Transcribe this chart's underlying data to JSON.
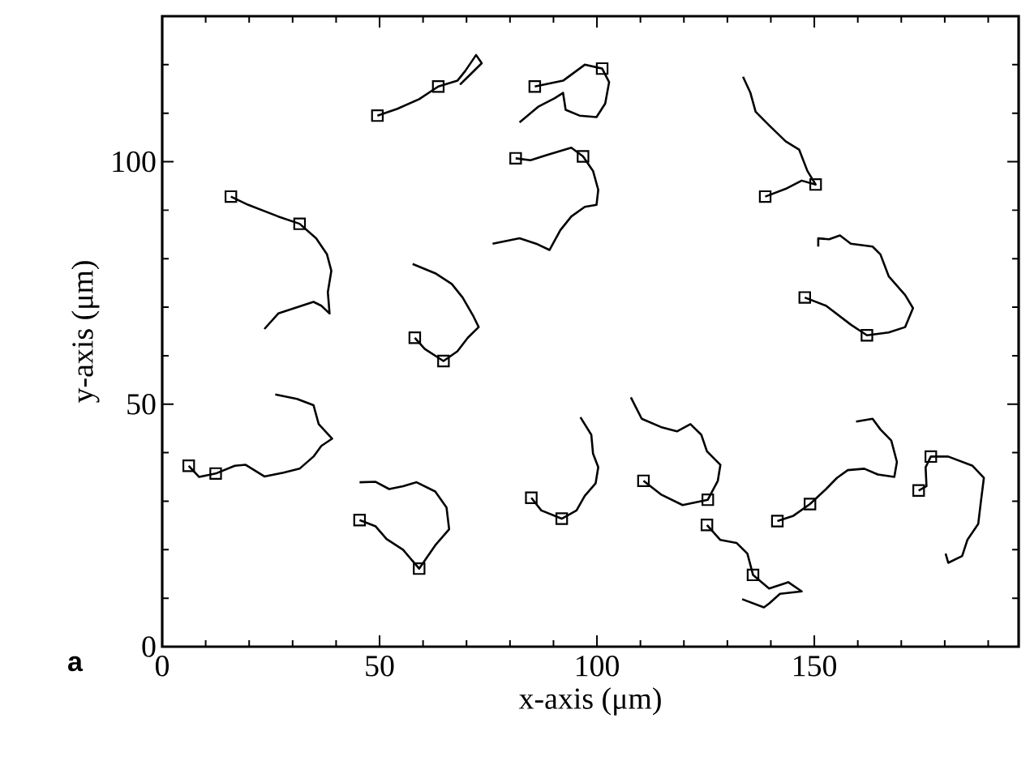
{
  "chart_data": {
    "type": "line",
    "xlabel": "x-axis (μm)",
    "ylabel": "y-axis (μm)",
    "annotations": [
      "a"
    ],
    "xlim": [
      0,
      197
    ],
    "ylim": [
      0,
      130
    ],
    "grid": false,
    "marker": "none",
    "xticks": [
      0,
      {
        "value": 10,
        "label": null
      },
      {
        "value": 20,
        "label": null
      },
      {
        "value": 30,
        "label": null
      },
      {
        "value": 40,
        "label": null
      },
      50,
      {
        "value": 60,
        "label": null
      },
      {
        "value": 70,
        "label": null
      },
      {
        "value": 80,
        "label": null
      },
      {
        "value": 90,
        "label": null
      },
      100,
      {
        "value": 110,
        "label": null
      },
      {
        "value": 120,
        "label": null
      },
      {
        "value": 130,
        "label": null
      },
      {
        "value": 140,
        "label": null
      },
      150,
      {
        "value": 160,
        "label": null
      },
      {
        "value": 170,
        "label": null
      },
      {
        "value": 180,
        "label": null
      },
      {
        "value": 190,
        "label": null
      }
    ],
    "yticks": [
      0,
      {
        "value": 10,
        "label": null
      },
      {
        "value": 20,
        "label": null
      },
      {
        "value": 30,
        "label": null
      },
      {
        "value": 40,
        "label": null
      },
      50,
      {
        "value": 60,
        "label": null
      },
      {
        "value": 70,
        "label": null
      },
      {
        "value": 80,
        "label": null
      },
      {
        "value": 90,
        "label": null
      },
      100,
      {
        "value": 110,
        "label": null
      },
      {
        "value": 120,
        "label": null
      }
    ],
    "series": [
      {
        "color": "#000000",
        "x": [
          49.5,
          54.1,
          59.1,
          63.5,
          67.9,
          69.7,
          72.2,
          73.5,
          71.0,
          68.5
        ],
        "values": [
          109.5,
          110.9,
          112.9,
          115.5,
          116.7,
          118.7,
          122.0,
          120.3,
          118.1,
          115.9
        ]
      },
      {
        "color": "#000000",
        "x": [
          85.7,
          92.2,
          97.2,
          101.2,
          102.8,
          101.9,
          99.9,
          96.0,
          92.8,
          92.2,
          90.3,
          86.6,
          82.2
        ],
        "values": [
          115.5,
          116.7,
          120.0,
          119.2,
          116.4,
          112.0,
          109.2,
          109.5,
          110.7,
          114.2,
          113.1,
          111.4,
          108.1
        ]
      },
      {
        "color": "#000000",
        "x": [
          81.3,
          84.7,
          88.5,
          94.1,
          96.8,
          99.1,
          100.3,
          99.9,
          97.2,
          94.1,
          91.6,
          89.1,
          86.0,
          82.2,
          76.0
        ],
        "values": [
          100.7,
          100.3,
          101.4,
          102.9,
          101.1,
          98.1,
          94.2,
          91.1,
          90.7,
          88.7,
          85.9,
          81.8,
          83.1,
          84.2,
          83.1
        ]
      },
      {
        "color": "#000000",
        "x": [
          138.7,
          143.4,
          147.1,
          150.3,
          148.4,
          146.5,
          143.4,
          139.6,
          136.5,
          135.3,
          133.6
        ],
        "values": [
          92.8,
          94.4,
          96.1,
          95.3,
          98.1,
          102.5,
          104.2,
          107.5,
          110.3,
          114.2,
          117.5
        ]
      },
      {
        "color": "#000000",
        "x": [
          147.8,
          152.7,
          158.4,
          162.1,
          167.1,
          170.9,
          172.7,
          170.9,
          167.1,
          165.2,
          163.4,
          158.4,
          155.9,
          153.4,
          150.9,
          150.9
        ],
        "values": [
          72.0,
          70.3,
          66.4,
          64.2,
          64.8,
          65.9,
          69.8,
          72.5,
          76.4,
          80.9,
          82.5,
          83.1,
          84.8,
          84.0,
          84.2,
          82.5
        ]
      },
      {
        "color": "#000000",
        "x": [
          15.8,
          19.8,
          26.7,
          31.6,
          35.4,
          37.9,
          38.9,
          38.1,
          38.5,
          36.6,
          34.8,
          30.4,
          26.7,
          23.5
        ],
        "values": [
          92.8,
          91.1,
          88.7,
          87.2,
          84.2,
          80.9,
          77.5,
          73.1,
          68.7,
          70.3,
          71.1,
          69.8,
          68.7,
          65.5
        ]
      },
      {
        "color": "#000000",
        "x": [
          58.1,
          60.4,
          64.7,
          67.9,
          70.3,
          72.8,
          71.6,
          69.1,
          66.6,
          62.8,
          57.6
        ],
        "values": [
          63.7,
          61.4,
          58.9,
          60.9,
          63.7,
          65.9,
          68.1,
          72.0,
          74.8,
          77.0,
          78.9
        ]
      },
      {
        "color": "#000000",
        "x": [
          6.1,
          8.5,
          12.3,
          16.7,
          19.2,
          23.5,
          27.9,
          31.6,
          34.8,
          36.6,
          39.1,
          36.0,
          34.8,
          31.0,
          26.0
        ],
        "values": [
          37.3,
          35.0,
          35.7,
          37.3,
          37.5,
          35.1,
          35.9,
          36.7,
          39.2,
          41.4,
          42.9,
          45.9,
          49.8,
          51.1,
          52.0
        ]
      },
      {
        "color": "#000000",
        "x": [
          45.4,
          49.1,
          51.6,
          55.4,
          59.1,
          62.8,
          66.0,
          65.4,
          62.8,
          58.5,
          55.4,
          52.2,
          49.1,
          45.4
        ],
        "values": [
          26.1,
          24.8,
          22.2,
          20.0,
          16.1,
          20.9,
          24.2,
          28.7,
          32.0,
          33.9,
          33.1,
          32.5,
          34.0,
          33.9
        ]
      },
      {
        "color": "#000000",
        "x": [
          84.9,
          87.2,
          91.9,
          95.3,
          97.2,
          99.7,
          100.3,
          99.1,
          98.7,
          96.2
        ],
        "values": [
          30.7,
          28.1,
          26.4,
          28.1,
          31.1,
          33.7,
          37.0,
          39.8,
          43.7,
          47.3
        ]
      },
      {
        "color": "#000000",
        "x": [
          110.7,
          114.7,
          119.7,
          125.5,
          127.8,
          128.4,
          125.3,
          124.0,
          121.5,
          118.4,
          114.7,
          110.3,
          107.8
        ],
        "values": [
          34.2,
          31.4,
          29.2,
          30.3,
          34.2,
          37.5,
          40.3,
          43.7,
          45.9,
          44.4,
          45.3,
          47.0,
          51.4
        ]
      },
      {
        "color": "#000000",
        "x": [
          125.3,
          128.4,
          132.1,
          134.6,
          135.9,
          139.6,
          144.0,
          147.1,
          142.1,
          139.6,
          138.4,
          133.4
        ],
        "values": [
          25.1,
          22.0,
          21.4,
          19.2,
          14.8,
          12.0,
          13.3,
          11.4,
          10.9,
          8.9,
          8.1,
          9.8
        ]
      },
      {
        "color": "#000000",
        "x": [
          141.5,
          145.2,
          149.0,
          152.7,
          155.2,
          157.7,
          161.5,
          164.6,
          168.4,
          169.0,
          167.7,
          165.2,
          163.4,
          159.6
        ],
        "values": [
          25.9,
          27.0,
          29.4,
          32.5,
          34.8,
          36.4,
          36.7,
          35.5,
          35.0,
          38.1,
          42.5,
          44.8,
          47.0,
          46.4
        ]
      },
      {
        "color": "#000000",
        "x": [
          174.0,
          175.8,
          175.6,
          176.8,
          180.8,
          186.4,
          189.0,
          188.3,
          187.7,
          185.2,
          184.0,
          180.8,
          180.2
        ],
        "values": [
          32.2,
          33.1,
          37.0,
          39.2,
          39.2,
          37.3,
          34.8,
          29.8,
          25.3,
          22.0,
          18.7,
          17.3,
          19.2
        ]
      },
      {
        "type": "scatter",
        "marker": "square",
        "color": "#000000",
        "x": [
          49.5,
          63.5,
          85.7,
          101.2,
          81.3,
          96.8,
          138.7,
          150.3,
          147.8,
          162.1,
          15.8,
          31.6,
          58.1,
          64.7,
          6.1,
          12.3,
          45.4,
          59.1,
          84.9,
          91.9,
          110.7,
          125.5,
          125.3,
          135.9,
          141.5,
          149.0,
          174.0,
          176.8
        ],
        "values": [
          109.5,
          115.5,
          115.5,
          119.2,
          100.7,
          101.1,
          92.8,
          95.3,
          72.0,
          64.2,
          92.8,
          87.2,
          63.7,
          58.9,
          37.3,
          35.7,
          26.1,
          16.1,
          30.7,
          26.4,
          34.2,
          30.3,
          25.1,
          14.8,
          25.9,
          29.4,
          32.2,
          39.2
        ]
      }
    ]
  }
}
